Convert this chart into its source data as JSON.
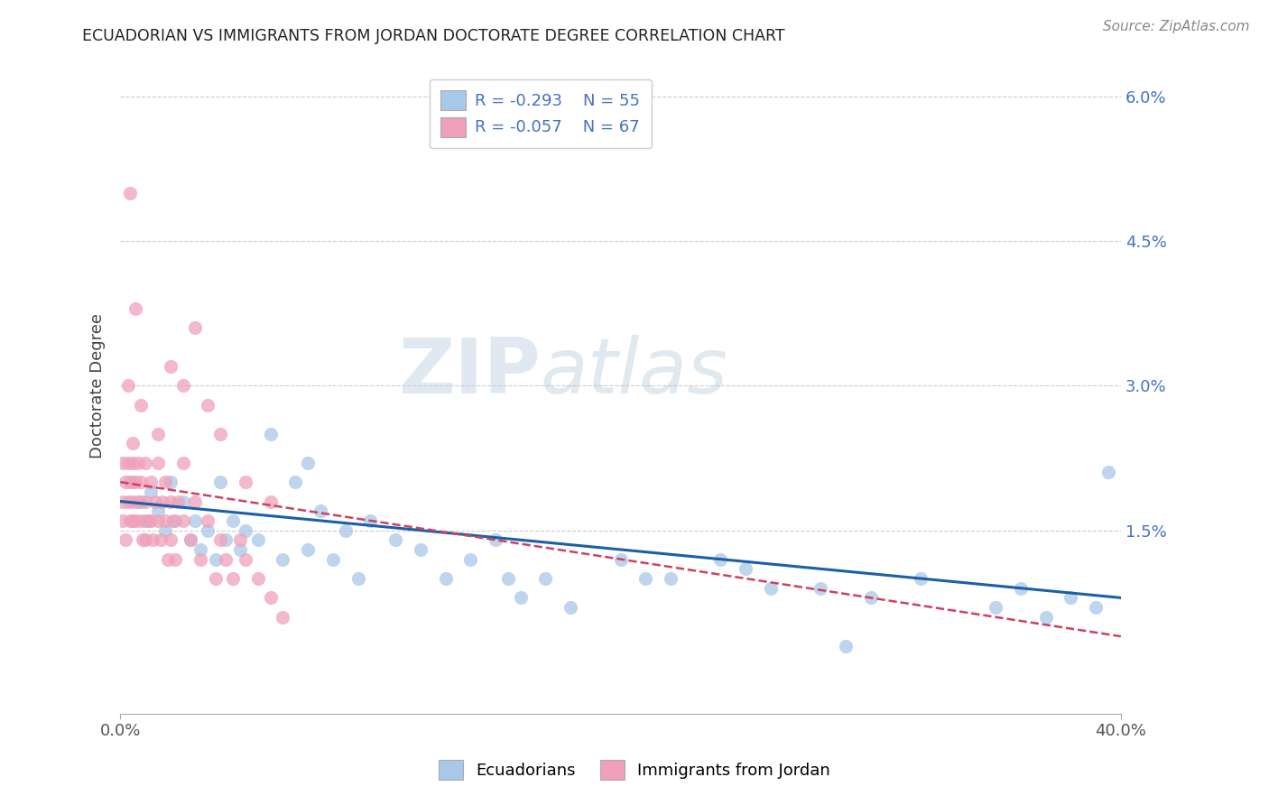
{
  "title": "ECUADORIAN VS IMMIGRANTS FROM JORDAN DOCTORATE DEGREE CORRELATION CHART",
  "source": "Source: ZipAtlas.com",
  "ylabel": "Doctorate Degree",
  "right_yticklabels": [
    "",
    "1.5%",
    "3.0%",
    "4.5%",
    "6.0%"
  ],
  "right_ytick_vals": [
    0.0,
    0.015,
    0.03,
    0.045,
    0.06
  ],
  "xmin": 0.0,
  "xmax": 0.4,
  "ymin": -0.004,
  "ymax": 0.064,
  "legend_r1": "R = -0.293",
  "legend_n1": "N = 55",
  "legend_r2": "R = -0.057",
  "legend_n2": "N = 67",
  "color_blue": "#a8c8e8",
  "color_pink": "#f0a0b8",
  "trendline_blue": "#1a5fa8",
  "trendline_pink": "#d04060",
  "watermark_zip": "ZIP",
  "watermark_atlas": "atlas",
  "blue_x": [
    0.005,
    0.008,
    0.01,
    0.012,
    0.015,
    0.018,
    0.02,
    0.022,
    0.025,
    0.028,
    0.03,
    0.032,
    0.035,
    0.038,
    0.04,
    0.042,
    0.045,
    0.048,
    0.05,
    0.055,
    0.06,
    0.065,
    0.07,
    0.075,
    0.08,
    0.085,
    0.09,
    0.095,
    0.1,
    0.11,
    0.12,
    0.13,
    0.14,
    0.15,
    0.16,
    0.17,
    0.18,
    0.2,
    0.21,
    0.22,
    0.24,
    0.26,
    0.28,
    0.3,
    0.32,
    0.35,
    0.36,
    0.37,
    0.38,
    0.39,
    0.395,
    0.25,
    0.29,
    0.155,
    0.075
  ],
  "blue_y": [
    0.02,
    0.018,
    0.016,
    0.019,
    0.017,
    0.015,
    0.02,
    0.016,
    0.018,
    0.014,
    0.016,
    0.013,
    0.015,
    0.012,
    0.02,
    0.014,
    0.016,
    0.013,
    0.015,
    0.014,
    0.025,
    0.012,
    0.02,
    0.013,
    0.017,
    0.012,
    0.015,
    0.01,
    0.016,
    0.014,
    0.013,
    0.01,
    0.012,
    0.014,
    0.008,
    0.01,
    0.007,
    0.012,
    0.01,
    0.01,
    0.012,
    0.009,
    0.009,
    0.008,
    0.01,
    0.007,
    0.009,
    0.006,
    0.008,
    0.007,
    0.021,
    0.011,
    0.003,
    0.01,
    0.022
  ],
  "pink_x": [
    0.001,
    0.001,
    0.001,
    0.002,
    0.002,
    0.003,
    0.003,
    0.004,
    0.004,
    0.005,
    0.005,
    0.005,
    0.005,
    0.006,
    0.006,
    0.007,
    0.007,
    0.008,
    0.008,
    0.009,
    0.01,
    0.01,
    0.01,
    0.011,
    0.012,
    0.012,
    0.013,
    0.014,
    0.015,
    0.015,
    0.016,
    0.017,
    0.018,
    0.019,
    0.02,
    0.02,
    0.021,
    0.022,
    0.023,
    0.025,
    0.025,
    0.028,
    0.03,
    0.032,
    0.035,
    0.038,
    0.04,
    0.042,
    0.045,
    0.048,
    0.05,
    0.055,
    0.06,
    0.065,
    0.015,
    0.018,
    0.02,
    0.025,
    0.03,
    0.035,
    0.04,
    0.05,
    0.06,
    0.003,
    0.008,
    0.004,
    0.006
  ],
  "pink_y": [
    0.022,
    0.018,
    0.016,
    0.02,
    0.014,
    0.018,
    0.022,
    0.016,
    0.02,
    0.018,
    0.022,
    0.016,
    0.024,
    0.02,
    0.016,
    0.018,
    0.022,
    0.016,
    0.02,
    0.014,
    0.018,
    0.022,
    0.014,
    0.016,
    0.02,
    0.016,
    0.014,
    0.018,
    0.016,
    0.022,
    0.014,
    0.018,
    0.016,
    0.012,
    0.018,
    0.014,
    0.016,
    0.012,
    0.018,
    0.016,
    0.022,
    0.014,
    0.018,
    0.012,
    0.016,
    0.01,
    0.014,
    0.012,
    0.01,
    0.014,
    0.012,
    0.01,
    0.008,
    0.006,
    0.025,
    0.02,
    0.032,
    0.03,
    0.036,
    0.028,
    0.025,
    0.02,
    0.018,
    0.03,
    0.028,
    0.05,
    0.038
  ]
}
